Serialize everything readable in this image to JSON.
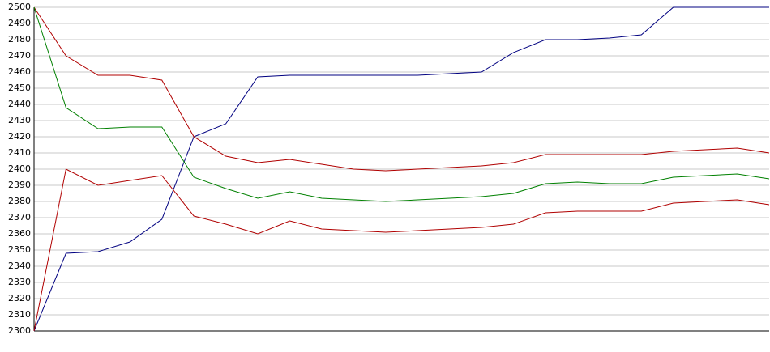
{
  "chart_data": {
    "type": "line",
    "categories": [
      null,
      null,
      null,
      null,
      null,
      null,
      null,
      null,
      null,
      null,
      null,
      null,
      null,
      null,
      null,
      null,
      null,
      null,
      null,
      null,
      null,
      null,
      null,
      null
    ],
    "series": [
      {
        "color": "#000080",
        "values": [
          2300,
          2348,
          2349,
          2355,
          2369,
          2420,
          2428,
          2457,
          2458,
          2458,
          2458,
          2458,
          2458,
          2459,
          2460,
          2472,
          2480,
          2480,
          2481,
          2483,
          2500,
          2500,
          2500,
          2500
        ]
      },
      {
        "color": "#b00000",
        "values": [
          2500,
          2470,
          2458,
          2458,
          2455,
          2420,
          2408,
          2404,
          2406,
          2403,
          2400,
          2399,
          2400,
          2401,
          2402,
          2404,
          2409,
          2409,
          2409,
          2409,
          2411,
          2412,
          2413,
          2410
        ]
      },
      {
        "color": "#008000",
        "values": [
          2500,
          2438,
          2425,
          2426,
          2426,
          2395,
          2388,
          2382,
          2386,
          2382,
          2381,
          2380,
          2381,
          2382,
          2383,
          2385,
          2391,
          2392,
          2391,
          2391,
          2395,
          2396,
          2397,
          2394
        ]
      },
      {
        "color": "#b00000",
        "values": [
          2300,
          2400,
          2390,
          2393,
          2396,
          2371,
          2366,
          2360,
          2368,
          2363,
          2362,
          2361,
          2362,
          2363,
          2364,
          2366,
          2373,
          2374,
          2374,
          2374,
          2379,
          2380,
          2381,
          2378
        ]
      }
    ],
    "ylim": [
      2300,
      2500
    ],
    "yticks": [
      2300,
      2310,
      2320,
      2330,
      2340,
      2350,
      2360,
      2370,
      2380,
      2390,
      2400,
      2410,
      2420,
      2430,
      2440,
      2450,
      2460,
      2470,
      2480,
      2490,
      2500
    ],
    "grid": true
  }
}
